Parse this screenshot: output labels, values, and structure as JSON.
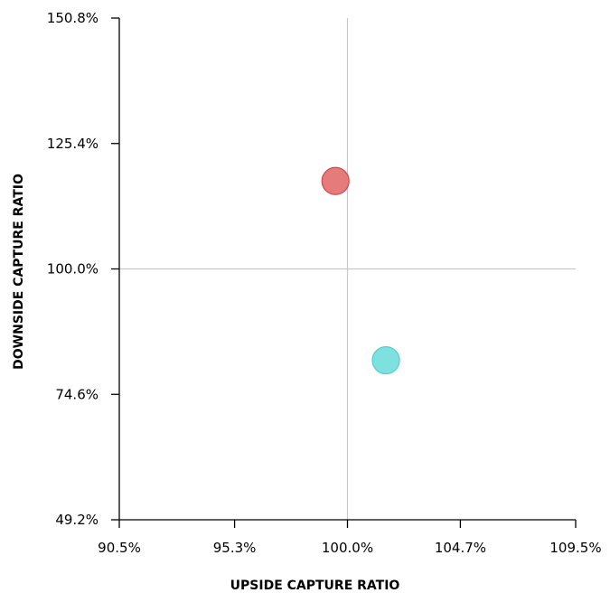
{
  "chart_data": {
    "type": "scatter",
    "title": "",
    "xlabel": "UPSIDE CAPTURE RATIO",
    "ylabel": "DOWNSIDE CAPTURE RATIO",
    "xlim": [
      90.5,
      109.5
    ],
    "ylim": [
      49.2,
      150.8
    ],
    "x_ticks": [
      "90.5%",
      "95.3%",
      "100.0%",
      "104.7%",
      "109.5%"
    ],
    "x_tick_values": [
      90.5,
      95.3,
      100.0,
      104.7,
      109.5
    ],
    "y_ticks": [
      "49.2%",
      "74.6%",
      "100.0%",
      "125.4%",
      "150.8%"
    ],
    "y_tick_values": [
      49.2,
      74.6,
      100.0,
      125.4,
      150.8
    ],
    "reference_lines": {
      "x": 100.0,
      "y": 100.0
    },
    "grid": false,
    "series": [
      {
        "x": [
          99.5
        ],
        "y": [
          117.8
        ],
        "color": "#e57b7b",
        "stroke": "#cc4a4a"
      },
      {
        "x": [
          101.6
        ],
        "y": [
          81.5
        ],
        "color": "#7fe0e0",
        "stroke": "#4ccfcf"
      }
    ]
  }
}
